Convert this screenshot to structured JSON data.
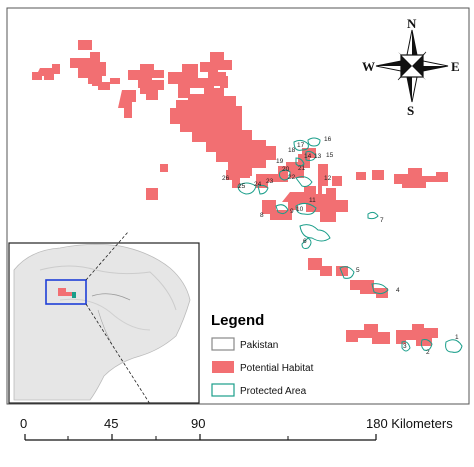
{
  "compass": {
    "north": "N",
    "south": "S",
    "east": "E",
    "west": "W"
  },
  "legend": {
    "title": "Legend",
    "items": [
      {
        "label": "Pakistan",
        "color": "#888888"
      },
      {
        "label": "Potential Habitat",
        "color": "#f26f72"
      },
      {
        "label": "Protected Area",
        "color": "#1a9e8a"
      }
    ]
  },
  "scale_bar": {
    "ticks": [
      "0",
      "45",
      "90",
      "180 Kilometers"
    ]
  },
  "protected_area_labels": [
    "1",
    "2",
    "3",
    "4",
    "5",
    "6",
    "7",
    "8",
    "9",
    "10",
    "11",
    "12",
    "13",
    "14",
    "15",
    "16",
    "17",
    "18",
    "19",
    "20",
    "21",
    "22",
    "23",
    "24",
    "25",
    "26"
  ]
}
